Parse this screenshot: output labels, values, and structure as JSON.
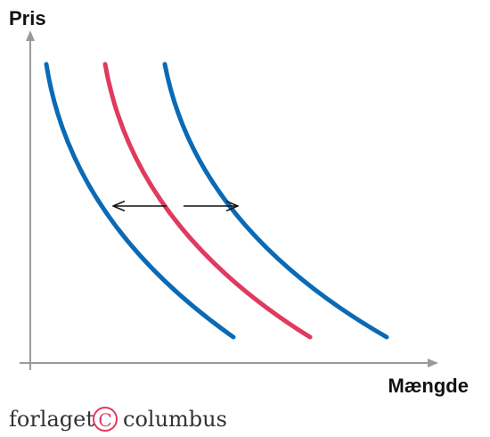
{
  "y_axis_label": "Pris",
  "x_axis_label": "Mængde",
  "publisher_logo": {
    "left_word": "forlaget",
    "symbol": "C",
    "right_word": "columbus"
  },
  "curves": [
    {
      "name": "demand-curve-left",
      "color": "#0a6ab6"
    },
    {
      "name": "demand-curve-original",
      "color": "#e03a5f"
    },
    {
      "name": "demand-curve-right",
      "color": "#0a6ab6"
    }
  ],
  "arrow_color": "#111111",
  "axis_color": "#9a9a9a"
}
